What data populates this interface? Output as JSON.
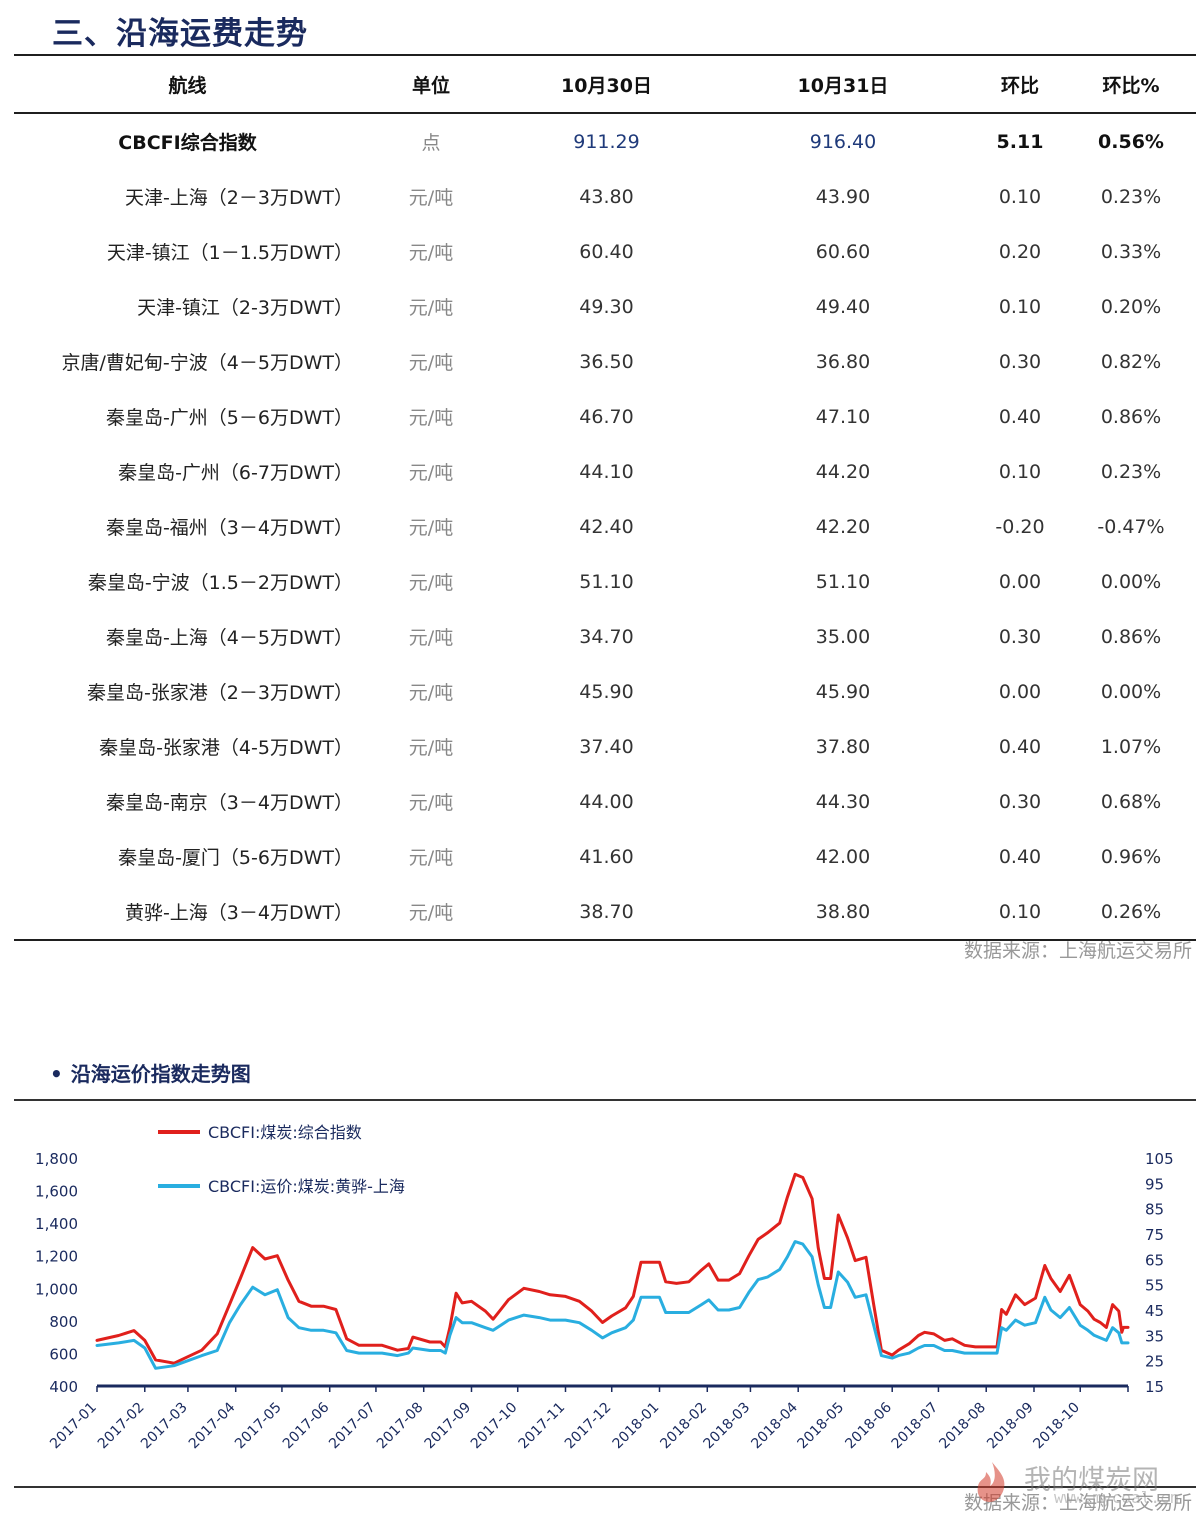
{
  "section": {
    "title": "三、沿海运费走势"
  },
  "table": {
    "headers": [
      "航线",
      "单位",
      "10月30日",
      "10月31日",
      "环比",
      "环比%"
    ],
    "rows": [
      [
        "CBCFI综合指数",
        "点",
        "911.29",
        "916.40",
        "5.11",
        "0.56%"
      ],
      [
        "天津-上海（2－3万DWT）",
        "元/吨",
        "43.80",
        "43.90",
        "0.10",
        "0.23%"
      ],
      [
        "天津-镇江（1－1.5万DWT）",
        "元/吨",
        "60.40",
        "60.60",
        "0.20",
        "0.33%"
      ],
      [
        "天津-镇江（2-3万DWT）",
        "元/吨",
        "49.30",
        "49.40",
        "0.10",
        "0.20%"
      ],
      [
        "京唐/曹妃甸-宁波（4－5万DWT）",
        "元/吨",
        "36.50",
        "36.80",
        "0.30",
        "0.82%"
      ],
      [
        "秦皇岛-广州（5－6万DWT）",
        "元/吨",
        "46.70",
        "47.10",
        "0.40",
        "0.86%"
      ],
      [
        "秦皇岛-广州（6-7万DWT）",
        "元/吨",
        "44.10",
        "44.20",
        "0.10",
        "0.23%"
      ],
      [
        "秦皇岛-福州（3－4万DWT）",
        "元/吨",
        "42.40",
        "42.20",
        "-0.20",
        "-0.47%"
      ],
      [
        "秦皇岛-宁波（1.5－2万DWT）",
        "元/吨",
        "51.10",
        "51.10",
        "0.00",
        "0.00%"
      ],
      [
        "秦皇岛-上海（4－5万DWT）",
        "元/吨",
        "34.70",
        "35.00",
        "0.30",
        "0.86%"
      ],
      [
        "秦皇岛-张家港（2－3万DWT）",
        "元/吨",
        "45.90",
        "45.90",
        "0.00",
        "0.00%"
      ],
      [
        "秦皇岛-张家港（4-5万DWT）",
        "元/吨",
        "37.40",
        "37.80",
        "0.40",
        "1.07%"
      ],
      [
        "秦皇岛-南京（3－4万DWT）",
        "元/吨",
        "44.00",
        "44.30",
        "0.30",
        "0.68%"
      ],
      [
        "秦皇岛-厦门（5-6万DWT）",
        "元/吨",
        "41.60",
        "42.00",
        "0.40",
        "0.96%"
      ],
      [
        "黄骅-上海（3－4万DWT）",
        "元/吨",
        "38.70",
        "38.80",
        "0.10",
        "0.26%"
      ]
    ],
    "source": "数据来源：上海航运交易所"
  },
  "chart_section": {
    "bullet": "•",
    "title": "沿海运价指数走势图"
  },
  "chart_data": {
    "type": "line",
    "title": "沿海运价指数走势图",
    "x": [
      "2017-01",
      "2017-02",
      "2017-03",
      "2017-04",
      "2017-05",
      "2017-06",
      "2017-07",
      "2017-08",
      "2017-09",
      "2017-10",
      "2017-11",
      "2017-12",
      "2018-01",
      "2018-02",
      "2018-03",
      "2018-04",
      "2018-05",
      "2018-06",
      "2018-07",
      "2018-08",
      "2018-09",
      "2018-10"
    ],
    "x_range": [
      "2017-01-01",
      "2018-11-01"
    ],
    "left_axis": {
      "ylim": [
        400,
        1800
      ],
      "ticks": [
        "400",
        "600",
        "800",
        "1,000",
        "1,200",
        "1,400",
        "1,600",
        "1,800"
      ]
    },
    "right_axis": {
      "ylim": [
        15,
        105
      ],
      "ticks": [
        "15",
        "25",
        "35",
        "45",
        "55",
        "65",
        "75",
        "85",
        "95",
        "105"
      ]
    },
    "legend_position": "top-left",
    "grid": false,
    "series": [
      {
        "name": "CBCFI:煤炭:综合指数",
        "axis": "left",
        "color": "#e0201c",
        "points": [
          [
            "2017-01-01",
            680
          ],
          [
            "2017-01-15",
            710
          ],
          [
            "2017-01-25",
            740
          ],
          [
            "2017-02-01",
            680
          ],
          [
            "2017-02-08",
            560
          ],
          [
            "2017-02-20",
            540
          ],
          [
            "2017-03-01",
            580
          ],
          [
            "2017-03-10",
            620
          ],
          [
            "2017-03-20",
            720
          ],
          [
            "2017-03-28",
            900
          ],
          [
            "2017-04-04",
            1060
          ],
          [
            "2017-04-12",
            1250
          ],
          [
            "2017-04-20",
            1180
          ],
          [
            "2017-04-28",
            1200
          ],
          [
            "2017-05-05",
            1050
          ],
          [
            "2017-05-12",
            920
          ],
          [
            "2017-05-20",
            890
          ],
          [
            "2017-05-28",
            890
          ],
          [
            "2017-06-05",
            870
          ],
          [
            "2017-06-12",
            690
          ],
          [
            "2017-06-20",
            650
          ],
          [
            "2017-06-28",
            650
          ],
          [
            "2017-07-05",
            650
          ],
          [
            "2017-07-15",
            620
          ],
          [
            "2017-07-22",
            630
          ],
          [
            "2017-07-25",
            700
          ],
          [
            "2017-08-05",
            670
          ],
          [
            "2017-08-12",
            670
          ],
          [
            "2017-08-15",
            640
          ],
          [
            "2017-08-18",
            760
          ],
          [
            "2017-08-22",
            970
          ],
          [
            "2017-08-26",
            910
          ],
          [
            "2017-09-01",
            920
          ],
          [
            "2017-09-10",
            860
          ],
          [
            "2017-09-15",
            810
          ],
          [
            "2017-09-20",
            870
          ],
          [
            "2017-09-25",
            930
          ],
          [
            "2017-10-05",
            1000
          ],
          [
            "2017-10-15",
            980
          ],
          [
            "2017-10-22",
            960
          ],
          [
            "2017-11-01",
            950
          ],
          [
            "2017-11-10",
            920
          ],
          [
            "2017-11-18",
            860
          ],
          [
            "2017-11-25",
            790
          ],
          [
            "2017-12-01",
            830
          ],
          [
            "2017-12-10",
            880
          ],
          [
            "2017-12-15",
            950
          ],
          [
            "2017-12-20",
            1160
          ],
          [
            "2018-01-01",
            1160
          ],
          [
            "2018-01-05",
            1040
          ],
          [
            "2018-01-12",
            1030
          ],
          [
            "2018-01-20",
            1040
          ],
          [
            "2018-01-28",
            1110
          ],
          [
            "2018-02-02",
            1150
          ],
          [
            "2018-02-08",
            1050
          ],
          [
            "2018-02-15",
            1050
          ],
          [
            "2018-02-22",
            1090
          ],
          [
            "2018-02-28",
            1200
          ],
          [
            "2018-03-06",
            1300
          ],
          [
            "2018-03-12",
            1340
          ],
          [
            "2018-03-20",
            1400
          ],
          [
            "2018-03-25",
            1560
          ],
          [
            "2018-03-30",
            1700
          ],
          [
            "2018-04-04",
            1680
          ],
          [
            "2018-04-10",
            1550
          ],
          [
            "2018-04-14",
            1250
          ],
          [
            "2018-04-18",
            1060
          ],
          [
            "2018-04-22",
            1060
          ],
          [
            "2018-04-27",
            1450
          ],
          [
            "2018-05-03",
            1310
          ],
          [
            "2018-05-08",
            1170
          ],
          [
            "2018-05-15",
            1190
          ],
          [
            "2018-05-20",
            900
          ],
          [
            "2018-05-25",
            620
          ],
          [
            "2018-06-01",
            590
          ],
          [
            "2018-06-05",
            620
          ],
          [
            "2018-06-12",
            660
          ],
          [
            "2018-06-18",
            710
          ],
          [
            "2018-06-22",
            730
          ],
          [
            "2018-06-28",
            720
          ],
          [
            "2018-07-05",
            680
          ],
          [
            "2018-07-10",
            690
          ],
          [
            "2018-07-18",
            650
          ],
          [
            "2018-07-25",
            640
          ],
          [
            "2018-08-01",
            640
          ],
          [
            "2018-08-08",
            640
          ],
          [
            "2018-08-11",
            870
          ],
          [
            "2018-08-14",
            840
          ],
          [
            "2018-08-20",
            960
          ],
          [
            "2018-08-26",
            900
          ],
          [
            "2018-09-02",
            940
          ],
          [
            "2018-09-08",
            1140
          ],
          [
            "2018-09-12",
            1060
          ],
          [
            "2018-09-18",
            980
          ],
          [
            "2018-09-24",
            1080
          ],
          [
            "2018-10-01",
            900
          ],
          [
            "2018-10-06",
            860
          ],
          [
            "2018-10-10",
            810
          ],
          [
            "2018-10-14",
            790
          ],
          [
            "2018-10-18",
            760
          ],
          [
            "2018-10-22",
            900
          ],
          [
            "2018-10-26",
            860
          ],
          [
            "2018-10-28",
            730
          ],
          [
            "2018-10-29",
            760
          ],
          [
            "2018-11-01",
            760
          ]
        ]
      },
      {
        "name": "CBCFI:运价:煤炭:黄骅-上海",
        "axis": "right",
        "color": "#29aee0",
        "points": [
          [
            "2017-01-01",
            31
          ],
          [
            "2017-01-15",
            32
          ],
          [
            "2017-01-25",
            33
          ],
          [
            "2017-02-01",
            30
          ],
          [
            "2017-02-08",
            22
          ],
          [
            "2017-02-20",
            23
          ],
          [
            "2017-03-01",
            25
          ],
          [
            "2017-03-10",
            27
          ],
          [
            "2017-03-20",
            29
          ],
          [
            "2017-03-28",
            40
          ],
          [
            "2017-04-04",
            47
          ],
          [
            "2017-04-12",
            54
          ],
          [
            "2017-04-20",
            51
          ],
          [
            "2017-04-28",
            53
          ],
          [
            "2017-05-05",
            42
          ],
          [
            "2017-05-12",
            38
          ],
          [
            "2017-05-20",
            37
          ],
          [
            "2017-05-28",
            37
          ],
          [
            "2017-06-05",
            36
          ],
          [
            "2017-06-12",
            29
          ],
          [
            "2017-06-20",
            28
          ],
          [
            "2017-06-28",
            28
          ],
          [
            "2017-07-05",
            28
          ],
          [
            "2017-07-15",
            27
          ],
          [
            "2017-07-22",
            28
          ],
          [
            "2017-07-25",
            30
          ],
          [
            "2017-08-05",
            29
          ],
          [
            "2017-08-12",
            29
          ],
          [
            "2017-08-15",
            28
          ],
          [
            "2017-08-18",
            35
          ],
          [
            "2017-08-22",
            42
          ],
          [
            "2017-08-26",
            40
          ],
          [
            "2017-09-01",
            40
          ],
          [
            "2017-09-10",
            38
          ],
          [
            "2017-09-15",
            37
          ],
          [
            "2017-09-20",
            39
          ],
          [
            "2017-09-25",
            41
          ],
          [
            "2017-10-05",
            43
          ],
          [
            "2017-10-15",
            42
          ],
          [
            "2017-10-22",
            41
          ],
          [
            "2017-11-01",
            41
          ],
          [
            "2017-11-10",
            40
          ],
          [
            "2017-11-18",
            37
          ],
          [
            "2017-11-25",
            34
          ],
          [
            "2017-12-01",
            36
          ],
          [
            "2017-12-10",
            38
          ],
          [
            "2017-12-15",
            41
          ],
          [
            "2017-12-20",
            50
          ],
          [
            "2018-01-01",
            50
          ],
          [
            "2018-01-05",
            44
          ],
          [
            "2018-01-12",
            44
          ],
          [
            "2018-01-20",
            44
          ],
          [
            "2018-01-28",
            47
          ],
          [
            "2018-02-02",
            49
          ],
          [
            "2018-02-08",
            45
          ],
          [
            "2018-02-15",
            45
          ],
          [
            "2018-02-22",
            46
          ],
          [
            "2018-02-28",
            52
          ],
          [
            "2018-03-06",
            57
          ],
          [
            "2018-03-12",
            58
          ],
          [
            "2018-03-20",
            61
          ],
          [
            "2018-03-25",
            66
          ],
          [
            "2018-03-30",
            72
          ],
          [
            "2018-04-04",
            71
          ],
          [
            "2018-04-10",
            66
          ],
          [
            "2018-04-14",
            55
          ],
          [
            "2018-04-18",
            46
          ],
          [
            "2018-04-22",
            46
          ],
          [
            "2018-04-27",
            60
          ],
          [
            "2018-05-03",
            56
          ],
          [
            "2018-05-08",
            50
          ],
          [
            "2018-05-15",
            51
          ],
          [
            "2018-05-20",
            39
          ],
          [
            "2018-05-25",
            27
          ],
          [
            "2018-06-01",
            26
          ],
          [
            "2018-06-05",
            27
          ],
          [
            "2018-06-12",
            28
          ],
          [
            "2018-06-18",
            30
          ],
          [
            "2018-06-22",
            31
          ],
          [
            "2018-06-28",
            31
          ],
          [
            "2018-07-05",
            29
          ],
          [
            "2018-07-10",
            29
          ],
          [
            "2018-07-18",
            28
          ],
          [
            "2018-07-25",
            28
          ],
          [
            "2018-08-01",
            28
          ],
          [
            "2018-08-08",
            28
          ],
          [
            "2018-08-11",
            38
          ],
          [
            "2018-08-14",
            37
          ],
          [
            "2018-08-20",
            41
          ],
          [
            "2018-08-26",
            39
          ],
          [
            "2018-09-02",
            40
          ],
          [
            "2018-09-08",
            50
          ],
          [
            "2018-09-12",
            45
          ],
          [
            "2018-09-18",
            42
          ],
          [
            "2018-09-24",
            46
          ],
          [
            "2018-10-01",
            39
          ],
          [
            "2018-10-06",
            37
          ],
          [
            "2018-10-10",
            35
          ],
          [
            "2018-10-14",
            34
          ],
          [
            "2018-10-18",
            33
          ],
          [
            "2018-10-22",
            38
          ],
          [
            "2018-10-26",
            36
          ],
          [
            "2018-10-28",
            32
          ],
          [
            "2018-10-29",
            32
          ],
          [
            "2018-11-01",
            32
          ]
        ]
      }
    ],
    "source": "数据来源：上海航运交易所"
  },
  "watermark": {
    "text": "我的煤炭网",
    "url": "www.mycoal.cn"
  }
}
